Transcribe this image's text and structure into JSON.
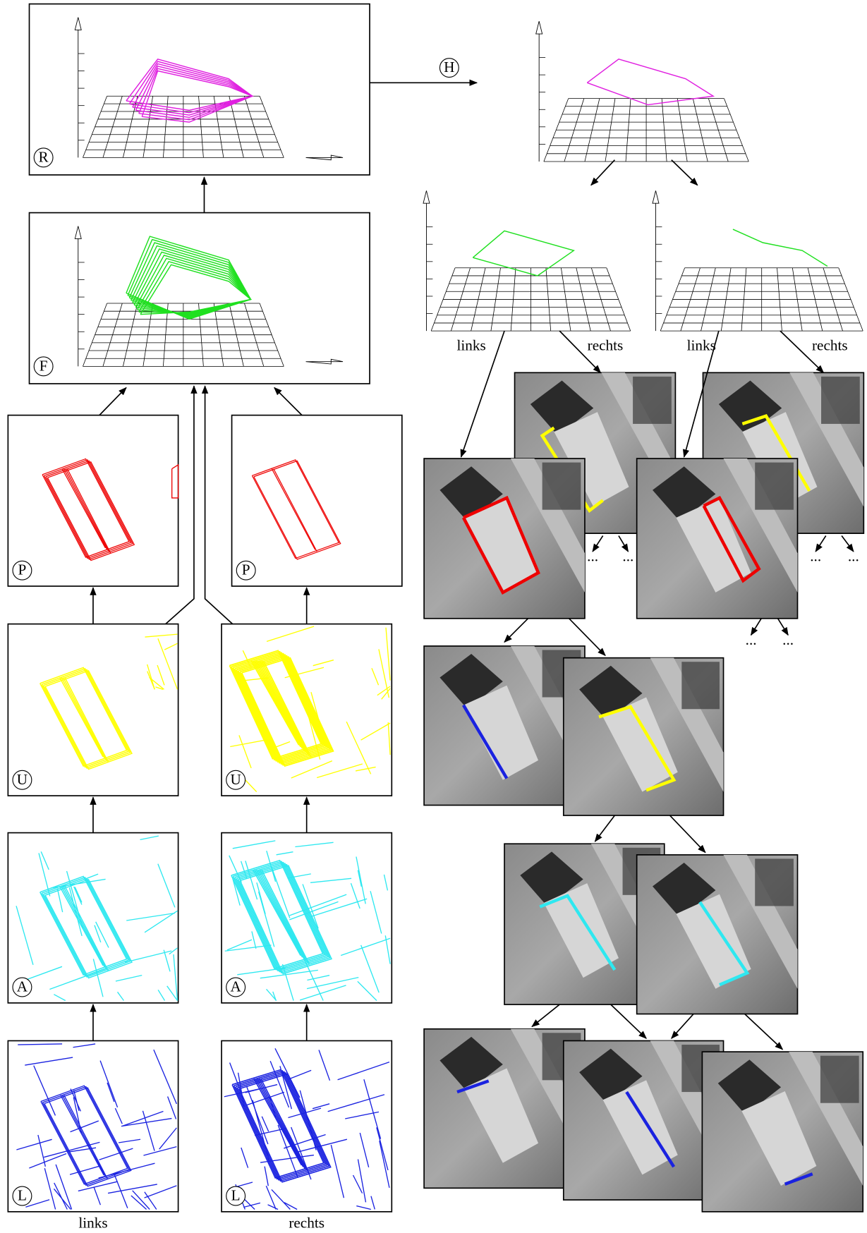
{
  "markers": [
    "R",
    "H",
    "F",
    "P",
    "P",
    "U",
    "U",
    "A",
    "A",
    "L",
    "L"
  ],
  "view_labels": [
    "links",
    "rechts",
    "links",
    "rechts",
    "links",
    "rechts"
  ],
  "ellipses": [
    "...",
    "...",
    "...",
    "...",
    "...",
    "..."
  ]
}
